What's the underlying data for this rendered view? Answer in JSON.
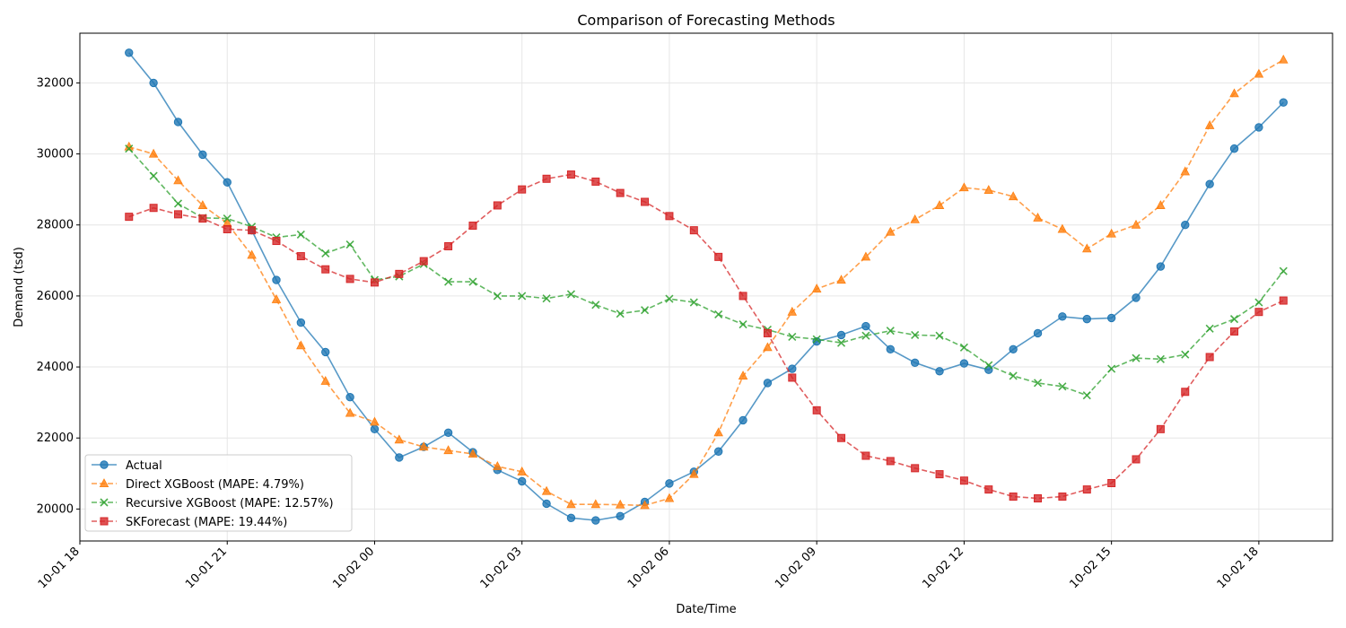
{
  "chart_data": {
    "type": "line",
    "title": "Comparison of Forecasting Methods",
    "xlabel": "Date/Time",
    "ylabel": "Demand (tsd)",
    "x_start": "10-01 19:00",
    "x_step_minutes": 30,
    "xlim": [
      "10-01 18:00",
      "10-02 19:30"
    ],
    "x_ticks": [
      "10-01 18",
      "10-01 21",
      "10-02 00",
      "10-02 03",
      "10-02 06",
      "10-02 09",
      "10-02 12",
      "10-02 15",
      "10-02 18"
    ],
    "ylim": [
      19100,
      33400
    ],
    "y_ticks": [
      20000,
      22000,
      24000,
      26000,
      28000,
      30000,
      32000
    ],
    "grid": true,
    "legend_position": "lower-left",
    "series": [
      {
        "name": "Actual",
        "color": "#1f77b4",
        "marker": "circle",
        "linestyle": "solid",
        "values": [
          32850,
          32000,
          30900,
          29980,
          29200,
          27850,
          26450,
          25250,
          24420,
          23150,
          22250,
          21450,
          21750,
          22150,
          21600,
          21100,
          20780,
          20150,
          19750,
          19680,
          19800,
          20200,
          20720,
          21050,
          21620,
          22500,
          23550,
          23950,
          24720,
          24900,
          25150,
          24500,
          24120,
          23880,
          24100,
          23920,
          24500,
          24950,
          25420,
          25350,
          25380,
          25950,
          26830,
          28000,
          29150,
          30150,
          30750,
          31450
        ]
      },
      {
        "name": "Direct XGBoost (MAPE: 4.79%)",
        "color": "#ff7f0e",
        "marker": "triangle",
        "linestyle": "dashed",
        "values": [
          30200,
          30000,
          29250,
          28550,
          28050,
          27150,
          25900,
          24600,
          23600,
          22700,
          22450,
          21950,
          21750,
          21650,
          21550,
          21200,
          21050,
          20500,
          20130,
          20130,
          20120,
          20100,
          20300,
          20980,
          22150,
          23750,
          24550,
          25550,
          26200,
          26450,
          27100,
          27800,
          28150,
          28550,
          29050,
          28980,
          28800,
          28200,
          27880,
          27330,
          27750,
          28000,
          28550,
          29500,
          30800,
          31700,
          32250,
          32650
        ]
      },
      {
        "name": "Recursive XGBoost (MAPE: 12.57%)",
        "color": "#2ca02c",
        "marker": "x",
        "linestyle": "dashed",
        "values": [
          30150,
          29380,
          28600,
          28200,
          28180,
          27950,
          27650,
          27730,
          27200,
          27450,
          26450,
          26550,
          26900,
          26400,
          26400,
          26000,
          26000,
          25930,
          26050,
          25750,
          25500,
          25600,
          25920,
          25820,
          25480,
          25200,
          25050,
          24850,
          24780,
          24680,
          24880,
          25020,
          24900,
          24880,
          24550,
          24050,
          23750,
          23550,
          23450,
          23200,
          23950,
          24250,
          24220,
          24350,
          25080,
          25350,
          25820,
          26700
        ]
      },
      {
        "name": "SKForecast (MAPE: 19.44%)",
        "color": "#d62728",
        "marker": "square",
        "linestyle": "dashed",
        "values": [
          28230,
          28480,
          28300,
          28180,
          27880,
          27850,
          27550,
          27120,
          26750,
          26480,
          26380,
          26620,
          26980,
          27400,
          27980,
          28550,
          29000,
          29300,
          29420,
          29220,
          28900,
          28650,
          28250,
          27850,
          27100,
          26000,
          24950,
          23700,
          22780,
          22000,
          21500,
          21350,
          21150,
          20980,
          20800,
          20550,
          20350,
          20300,
          20350,
          20550,
          20730,
          21400,
          22250,
          23300,
          24280,
          25000,
          25550,
          25870
        ]
      }
    ]
  }
}
